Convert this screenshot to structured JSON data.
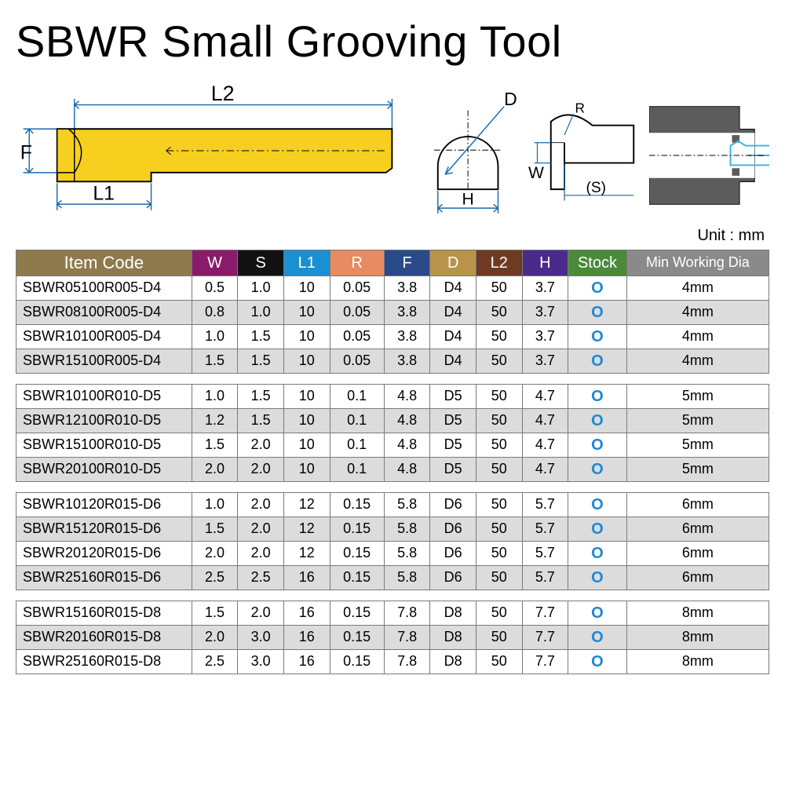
{
  "title": "SBWR Small Grooving Tool",
  "unit_label": "Unit : mm",
  "diagram_labels": {
    "L2": "L2",
    "L1": "L1",
    "F": "F",
    "D": "D",
    "H": "H",
    "W": "W",
    "R": "R",
    "S": "(S)"
  },
  "diagram_colors": {
    "tool_body": "#f7cf1e",
    "tool_outline": "#000000",
    "dimension_line": "#1a6aa8",
    "workpiece_fill": "#5c5c5c",
    "coolant_line": "#33b1e4"
  },
  "headers": [
    {
      "key": "item",
      "label": "Item Code",
      "bg": "#8e7a4d"
    },
    {
      "key": "W",
      "label": "W",
      "bg": "#8a1a6a"
    },
    {
      "key": "S",
      "label": "S",
      "bg": "#111111"
    },
    {
      "key": "L1",
      "label": "L1",
      "bg": "#1a8fd1"
    },
    {
      "key": "R",
      "label": "R",
      "bg": "#e78b62"
    },
    {
      "key": "F",
      "label": "F",
      "bg": "#2b4a8a"
    },
    {
      "key": "D",
      "label": "D",
      "bg": "#b8934a"
    },
    {
      "key": "L2",
      "label": "L2",
      "bg": "#6e3a22"
    },
    {
      "key": "H",
      "label": "H",
      "bg": "#4a2a8a"
    },
    {
      "key": "stock",
      "label": "Stock",
      "bg": "#4a8a3a"
    },
    {
      "key": "min",
      "label": "Min Working Dia",
      "bg": "#8a8a8a"
    }
  ],
  "stock_symbol": "O",
  "stock_color": "#1e88d6",
  "alt_row_bg": "#dcdcdc",
  "border_color": "#7a7a7a",
  "groups": [
    [
      {
        "item": "SBWR05100R005-D4",
        "W": "0.5",
        "S": "1.0",
        "L1": "10",
        "R": "0.05",
        "F": "3.8",
        "D": "D4",
        "L2": "50",
        "H": "3.7",
        "min": "4mm"
      },
      {
        "item": "SBWR08100R005-D4",
        "W": "0.8",
        "S": "1.0",
        "L1": "10",
        "R": "0.05",
        "F": "3.8",
        "D": "D4",
        "L2": "50",
        "H": "3.7",
        "min": "4mm"
      },
      {
        "item": "SBWR10100R005-D4",
        "W": "1.0",
        "S": "1.5",
        "L1": "10",
        "R": "0.05",
        "F": "3.8",
        "D": "D4",
        "L2": "50",
        "H": "3.7",
        "min": "4mm"
      },
      {
        "item": "SBWR15100R005-D4",
        "W": "1.5",
        "S": "1.5",
        "L1": "10",
        "R": "0.05",
        "F": "3.8",
        "D": "D4",
        "L2": "50",
        "H": "3.7",
        "min": "4mm"
      }
    ],
    [
      {
        "item": "SBWR10100R010-D5",
        "W": "1.0",
        "S": "1.5",
        "L1": "10",
        "R": "0.1",
        "F": "4.8",
        "D": "D5",
        "L2": "50",
        "H": "4.7",
        "min": "5mm"
      },
      {
        "item": "SBWR12100R010-D5",
        "W": "1.2",
        "S": "1.5",
        "L1": "10",
        "R": "0.1",
        "F": "4.8",
        "D": "D5",
        "L2": "50",
        "H": "4.7",
        "min": "5mm"
      },
      {
        "item": "SBWR15100R010-D5",
        "W": "1.5",
        "S": "2.0",
        "L1": "10",
        "R": "0.1",
        "F": "4.8",
        "D": "D5",
        "L2": "50",
        "H": "4.7",
        "min": "5mm"
      },
      {
        "item": "SBWR20100R010-D5",
        "W": "2.0",
        "S": "2.0",
        "L1": "10",
        "R": "0.1",
        "F": "4.8",
        "D": "D5",
        "L2": "50",
        "H": "4.7",
        "min": "5mm"
      }
    ],
    [
      {
        "item": "SBWR10120R015-D6",
        "W": "1.0",
        "S": "2.0",
        "L1": "12",
        "R": "0.15",
        "F": "5.8",
        "D": "D6",
        "L2": "50",
        "H": "5.7",
        "min": "6mm"
      },
      {
        "item": "SBWR15120R015-D6",
        "W": "1.5",
        "S": "2.0",
        "L1": "12",
        "R": "0.15",
        "F": "5.8",
        "D": "D6",
        "L2": "50",
        "H": "5.7",
        "min": "6mm"
      },
      {
        "item": "SBWR20120R015-D6",
        "W": "2.0",
        "S": "2.0",
        "L1": "12",
        "R": "0.15",
        "F": "5.8",
        "D": "D6",
        "L2": "50",
        "H": "5.7",
        "min": "6mm"
      },
      {
        "item": "SBWR25160R015-D6",
        "W": "2.5",
        "S": "2.5",
        "L1": "16",
        "R": "0.15",
        "F": "5.8",
        "D": "D6",
        "L2": "50",
        "H": "5.7",
        "min": "6mm"
      }
    ],
    [
      {
        "item": "SBWR15160R015-D8",
        "W": "1.5",
        "S": "2.0",
        "L1": "16",
        "R": "0.15",
        "F": "7.8",
        "D": "D8",
        "L2": "50",
        "H": "7.7",
        "min": "8mm"
      },
      {
        "item": "SBWR20160R015-D8",
        "W": "2.0",
        "S": "3.0",
        "L1": "16",
        "R": "0.15",
        "F": "7.8",
        "D": "D8",
        "L2": "50",
        "H": "7.7",
        "min": "8mm"
      },
      {
        "item": "SBWR25160R015-D8",
        "W": "2.5",
        "S": "3.0",
        "L1": "16",
        "R": "0.15",
        "F": "7.8",
        "D": "D8",
        "L2": "50",
        "H": "7.7",
        "min": "8mm"
      }
    ]
  ]
}
